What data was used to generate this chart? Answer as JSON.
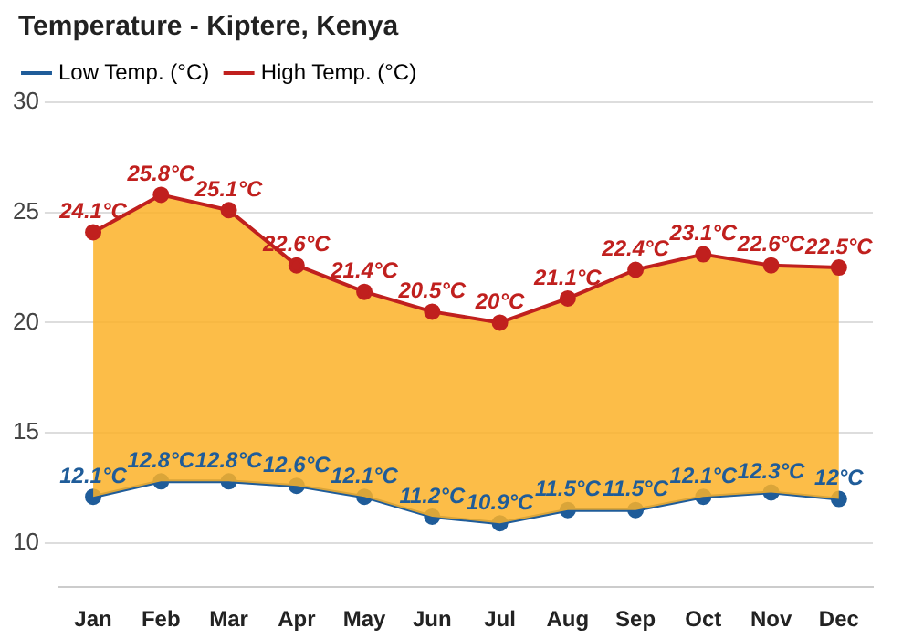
{
  "chart_data": {
    "type": "line",
    "title": "Temperature - Kiptere, Kenya",
    "categories": [
      "Jan",
      "Feb",
      "Mar",
      "Apr",
      "May",
      "Jun",
      "Jul",
      "Aug",
      "Sep",
      "Oct",
      "Nov",
      "Dec"
    ],
    "series": [
      {
        "name": "Low Temp. (°C)",
        "color": "#1f5c99",
        "values": [
          12.1,
          12.8,
          12.8,
          12.6,
          12.1,
          11.2,
          10.9,
          11.5,
          11.5,
          12.1,
          12.3,
          12
        ],
        "value_labels": [
          "12.1°C",
          "12.8°C",
          "12.8°C",
          "12.6°C",
          "12.1°C",
          "11.2°C",
          "10.9°C",
          "11.5°C",
          "11.5°C",
          "12.1°C",
          "12.3°C",
          "12°C"
        ]
      },
      {
        "name": "High Temp. (°C)",
        "color": "#c0201e",
        "values": [
          24.1,
          25.8,
          25.1,
          22.6,
          21.4,
          20.5,
          20,
          21.1,
          22.4,
          23.1,
          22.6,
          22.5
        ],
        "value_labels": [
          "24.1°C",
          "25.8°C",
          "25.1°C",
          "22.6°C",
          "21.4°C",
          "20.5°C",
          "20°C",
          "21.1°C",
          "22.4°C",
          "23.1°C",
          "22.6°C",
          "22.5°C"
        ]
      }
    ],
    "ylim": [
      8,
      30
    ],
    "yticks": [
      10,
      15,
      20,
      25,
      30
    ],
    "grid": "y",
    "legend": "top left",
    "marker": "circle",
    "line_style": "solid"
  }
}
